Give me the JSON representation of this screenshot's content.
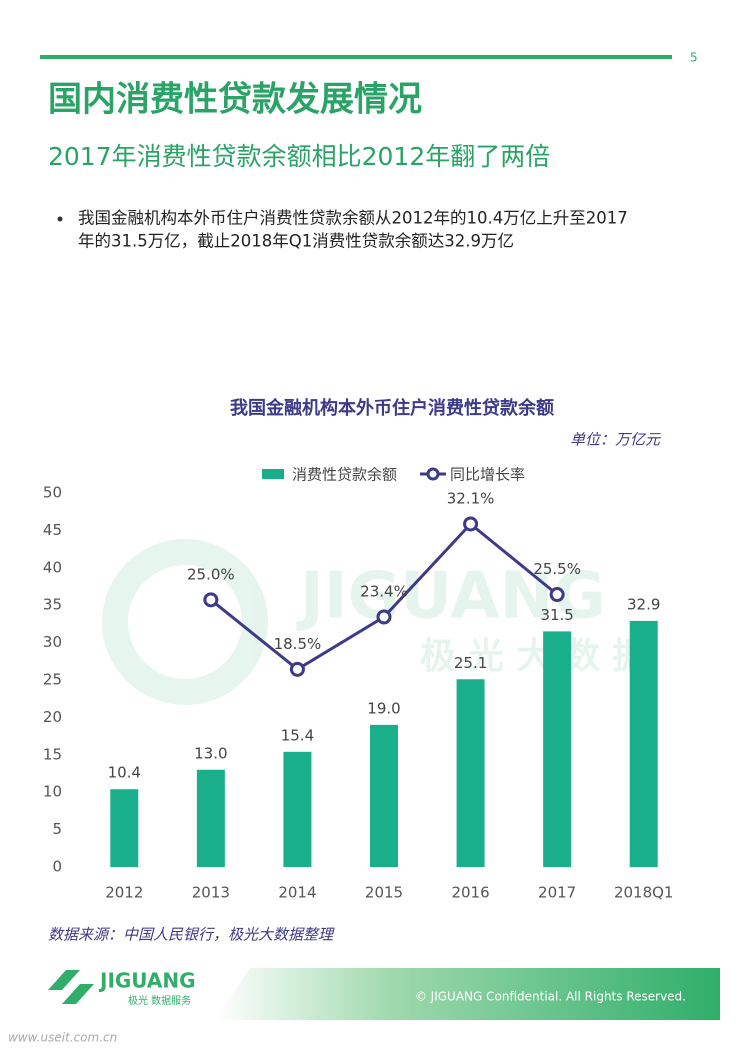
{
  "header": {
    "page_number": "5",
    "title": "国内消费性贷款发展情况",
    "subtitle": "2017年消费性贷款余额相比2012年翻了两倍"
  },
  "bullet": {
    "lines": [
      "我国金融机构本外币住户消费性贷款余额从2012年的10.4万亿上升至2017",
      "年的31.5万亿，截止2018年Q1消费性贷款余额达32.9万亿"
    ]
  },
  "chart_data": {
    "type": "bar",
    "title": "我国金融机构本外币住户消费性贷款余额",
    "unit": "单位：万亿元",
    "categories": [
      "2012",
      "2013",
      "2014",
      "2015",
      "2016",
      "2017",
      "2018Q1"
    ],
    "series": [
      {
        "name": "消费性贷款余额",
        "type": "bar",
        "color": "#1aaf8b",
        "values": [
          10.4,
          13.0,
          15.4,
          19.0,
          25.1,
          31.5,
          32.9
        ],
        "value_labels": [
          "10.4",
          "13.0",
          "15.4",
          "19.0",
          "25.1",
          "31.5",
          "32.9"
        ]
      },
      {
        "name": "同比增长率",
        "type": "line",
        "color": "#3d3a87",
        "axis": "y2",
        "values": [
          null,
          25.0,
          18.5,
          23.4,
          32.1,
          25.5,
          null
        ],
        "value_labels": [
          null,
          "25.0%",
          "18.5%",
          "23.4%",
          "32.1%",
          "25.5%",
          null
        ]
      }
    ],
    "ylim": [
      0,
      50
    ],
    "yticks": [
      0,
      5,
      10,
      15,
      20,
      25,
      30,
      35,
      40,
      45,
      50
    ],
    "y2lim": [
      0,
      35
    ],
    "legend": "top",
    "source": "数据来源：中国人民银行，极光大数据整理"
  },
  "watermark": {
    "brand": "JIGUANG",
    "cn": "极光大数据"
  },
  "footer": {
    "logo": "JIGUANG",
    "logo_sub": "极光 数据服务",
    "copyright": "© JIGUANG Confidential. All Rights Reserved.",
    "site": "www.useit.com.cn"
  }
}
